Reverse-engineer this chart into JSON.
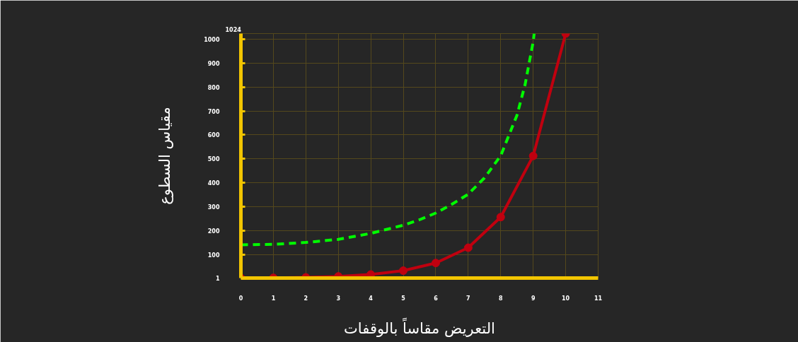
{
  "chart_data": {
    "type": "line",
    "xlabel": "التعريض مقاساً بالوقفات",
    "ylabel": "مقياس السطوع",
    "xlim": [
      0,
      11
    ],
    "xticks": [
      0,
      1,
      2,
      3,
      4,
      5,
      6,
      7,
      8,
      9,
      10,
      11
    ],
    "ylim": [
      1,
      1024
    ],
    "yticks": [
      1,
      100,
      200,
      300,
      400,
      500,
      600,
      700,
      800,
      900,
      1000
    ],
    "grid": true,
    "annotations": [
      "1024"
    ],
    "series": [
      {
        "color": "#00ff00",
        "line_style": "dashed",
        "marker": "none",
        "x": [
          0,
          1,
          2,
          3,
          4,
          4.5,
          5,
          5.5,
          6,
          6.5,
          7,
          7.5,
          8,
          8.5,
          8.75,
          9,
          9.03
        ],
        "values": [
          140,
          142,
          150,
          163,
          188,
          205,
          222,
          245,
          273,
          310,
          352,
          420,
          513,
          682,
          810,
          990,
          1024
        ]
      },
      {
        "color": "#c0000f",
        "line_style": "solid",
        "marker": "circle",
        "x": [
          0,
          1,
          2,
          3,
          4,
          5,
          6,
          7,
          8,
          9,
          10
        ],
        "values": [
          1,
          2,
          4,
          8,
          16,
          32,
          64,
          128,
          256,
          512,
          1024
        ]
      }
    ]
  }
}
